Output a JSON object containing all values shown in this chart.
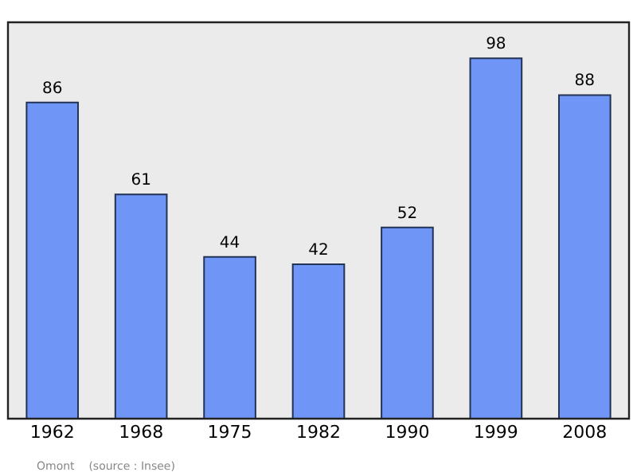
{
  "chart_data": {
    "type": "bar",
    "categories": [
      "1962",
      "1968",
      "1975",
      "1982",
      "1990",
      "1999",
      "2008"
    ],
    "values": [
      86,
      61,
      44,
      42,
      52,
      98,
      88
    ],
    "color": "#6f96f6",
    "data_labels": true,
    "legend": false,
    "annotations": [
      "Omont    (source : Insee)"
    ]
  }
}
